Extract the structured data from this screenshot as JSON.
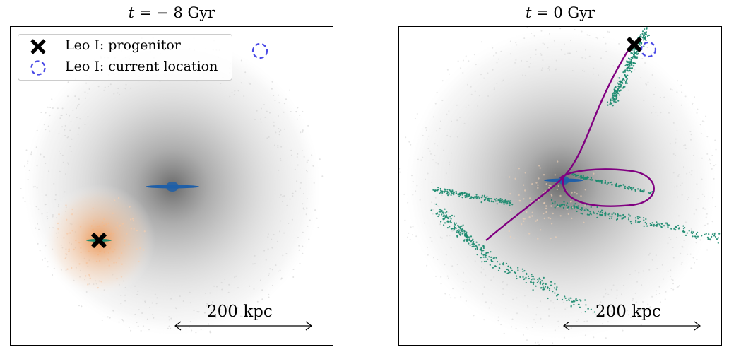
{
  "panels": [
    {
      "title_prefix": "t",
      "title_suffix": " = − 8 Gyr",
      "scale_label": "200 kpc"
    },
    {
      "title_prefix": "t",
      "title_suffix": " = 0 Gyr",
      "scale_label": "200 kpc"
    }
  ],
  "legend": {
    "items": [
      {
        "label": "Leo I: progenitor",
        "marker": "x-marker-icon",
        "color": "#000000"
      },
      {
        "label": "Leo I: current location",
        "marker": "dashed-circle-icon",
        "color": "#4a4ae6"
      }
    ]
  },
  "colors": {
    "halo": "#808080",
    "satellite_halo": "#f4a460",
    "disk": "#1f5fa8",
    "stream": "#1a8a6e",
    "orbit": "#800080",
    "current_location": "#4a4ae6"
  }
}
